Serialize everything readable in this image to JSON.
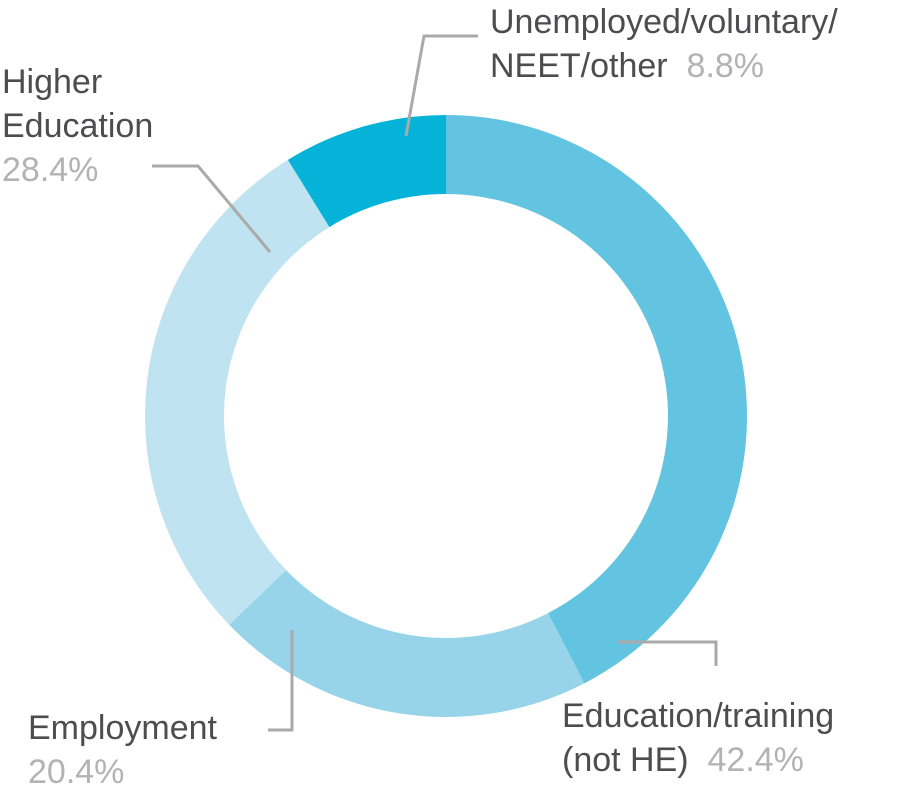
{
  "chart_data": {
    "type": "pie",
    "donut": true,
    "slices": [
      {
        "label": [
          "Education/training",
          "(not HE)"
        ],
        "value": 42.4,
        "value_label": "42.4%",
        "color": "#62c4e1"
      },
      {
        "label": [
          "Employment"
        ],
        "value": 20.4,
        "value_label": "20.4%",
        "color": "#98d4e9"
      },
      {
        "label": [
          "Higher",
          "Education"
        ],
        "value": 28.4,
        "value_label": "28.4%",
        "color": "#bfe3f1"
      },
      {
        "label": [
          "Unemployed/voluntary/",
          "NEET/other"
        ],
        "value": 8.8,
        "value_label": "8.8%",
        "color": "#05b3d9"
      }
    ],
    "leader_line_color": "#aaaaaa"
  }
}
